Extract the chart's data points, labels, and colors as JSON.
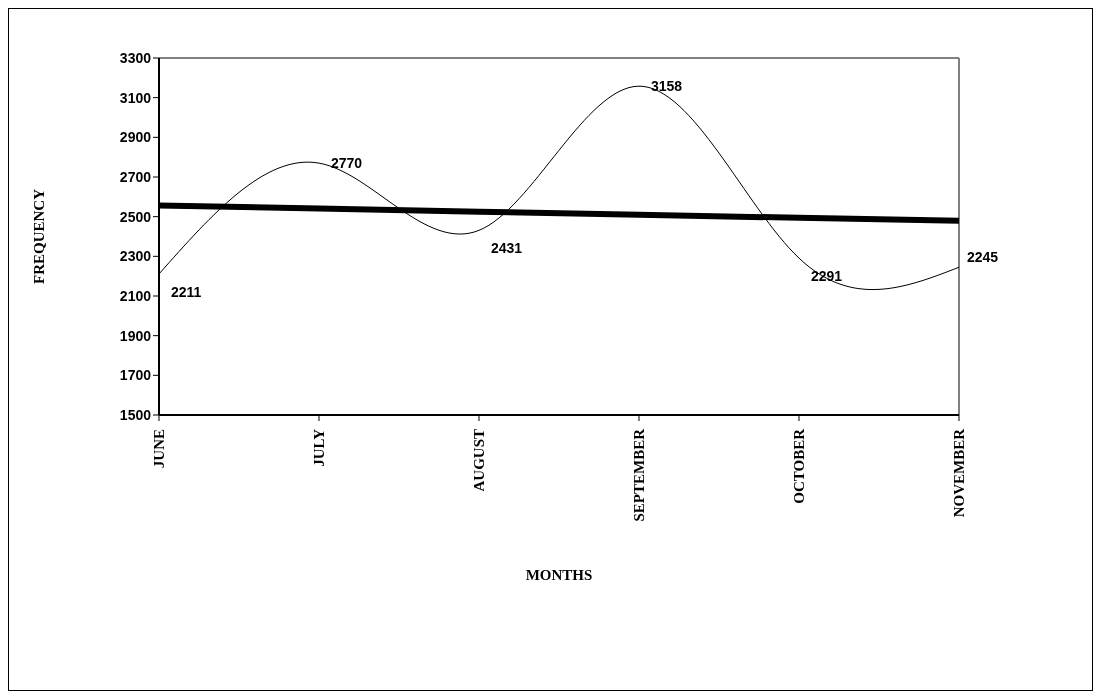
{
  "chart_data": {
    "type": "line",
    "xlabel": "MONTHS",
    "ylabel": "FREQUENCY",
    "categories": [
      "JUNE",
      "JULY",
      "AUGUST",
      "SEPTEMBER",
      "OCTOBER",
      "NOVEMBER"
    ],
    "series": [
      {
        "color": "#000000",
        "values": [
          2211,
          2770,
          2431,
          3158,
          2291,
          2245
        ],
        "value_labels": [
          "2211",
          "2770",
          "2431",
          "3158",
          "2291",
          "2245"
        ]
      },
      {
        "type": "line",
        "color": "#000000",
        "values": [
          2556,
          2541,
          2525,
          2510,
          2494,
          2479
        ]
      }
    ],
    "ylim": [
      1500,
      3300
    ],
    "yticks": [
      1500,
      1700,
      1900,
      2100,
      2300,
      2500,
      2700,
      2900,
      3100,
      3300
    ],
    "marker": "none",
    "line_style": "solid"
  }
}
